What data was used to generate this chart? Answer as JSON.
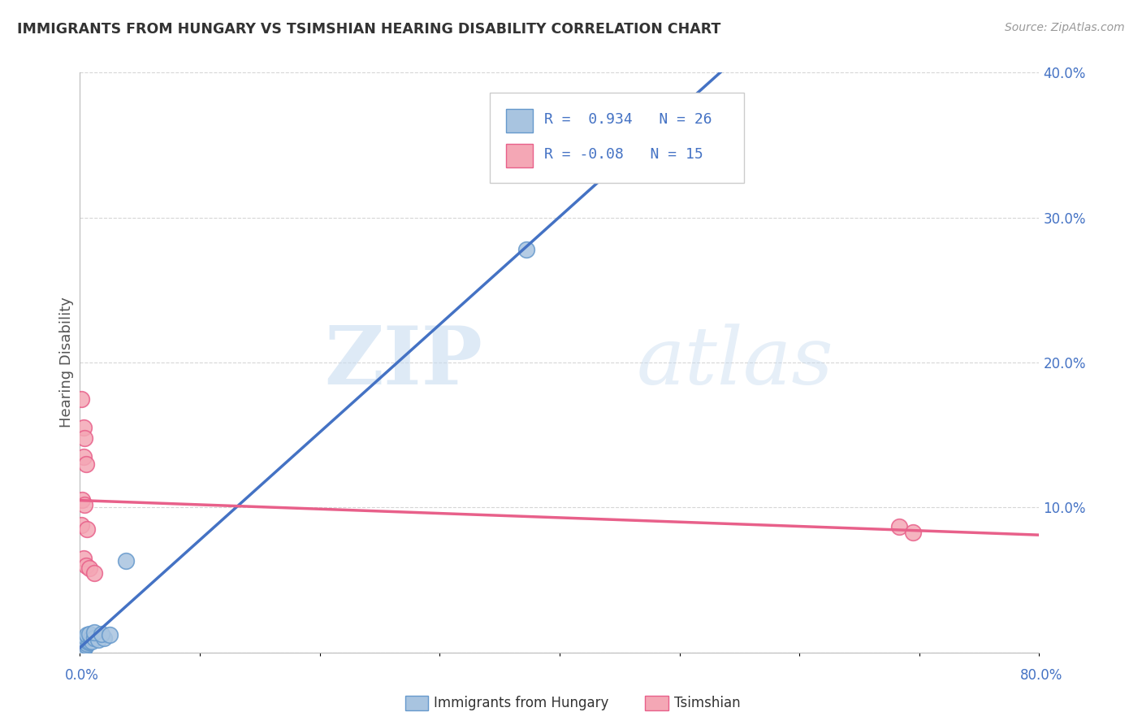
{
  "title": "IMMIGRANTS FROM HUNGARY VS TSIMSHIAN HEARING DISABILITY CORRELATION CHART",
  "source": "Source: ZipAtlas.com",
  "ylabel": "Hearing Disability",
  "xlim": [
    0,
    0.8
  ],
  "ylim": [
    0,
    0.4
  ],
  "yticks": [
    0.0,
    0.1,
    0.2,
    0.3,
    0.4
  ],
  "ytick_labels": [
    "",
    "10.0%",
    "20.0%",
    "30.0%",
    "40.0%"
  ],
  "blue_R": 0.934,
  "blue_N": 26,
  "pink_R": -0.08,
  "pink_N": 15,
  "blue_points": [
    [
      0.001,
      0.002
    ],
    [
      0.002,
      0.003
    ],
    [
      0.003,
      0.002
    ],
    [
      0.001,
      0.005
    ],
    [
      0.003,
      0.004
    ],
    [
      0.004,
      0.003
    ],
    [
      0.002,
      0.007
    ],
    [
      0.005,
      0.005
    ],
    [
      0.003,
      0.008
    ],
    [
      0.006,
      0.006
    ],
    [
      0.004,
      0.009
    ],
    [
      0.007,
      0.007
    ],
    [
      0.005,
      0.01
    ],
    [
      0.008,
      0.008
    ],
    [
      0.006,
      0.012
    ],
    [
      0.009,
      0.01
    ],
    [
      0.01,
      0.008
    ],
    [
      0.008,
      0.013
    ],
    [
      0.012,
      0.01
    ],
    [
      0.015,
      0.009
    ],
    [
      0.02,
      0.01
    ],
    [
      0.012,
      0.014
    ],
    [
      0.018,
      0.013
    ],
    [
      0.025,
      0.012
    ],
    [
      0.038,
      0.063
    ],
    [
      0.372,
      0.278
    ]
  ],
  "pink_points": [
    [
      0.001,
      0.175
    ],
    [
      0.003,
      0.155
    ],
    [
      0.004,
      0.148
    ],
    [
      0.003,
      0.135
    ],
    [
      0.005,
      0.13
    ],
    [
      0.002,
      0.105
    ],
    [
      0.004,
      0.102
    ],
    [
      0.001,
      0.088
    ],
    [
      0.006,
      0.085
    ],
    [
      0.003,
      0.065
    ],
    [
      0.005,
      0.06
    ],
    [
      0.008,
      0.058
    ],
    [
      0.012,
      0.055
    ],
    [
      0.683,
      0.087
    ],
    [
      0.695,
      0.083
    ]
  ],
  "blue_line_color": "#4472C4",
  "pink_line_color": "#E8608A",
  "blue_dot_facecolor": "#A8C4E0",
  "blue_dot_edgecolor": "#6699CC",
  "pink_dot_facecolor": "#F4A7B5",
  "pink_dot_edgecolor": "#E8608A",
  "background_color": "#FFFFFF",
  "grid_color": "#BBBBBB",
  "watermark_zip": "ZIP",
  "watermark_atlas": "atlas",
  "text_color_blue": "#4472C4",
  "title_color": "#333333",
  "ylabel_color": "#555555"
}
